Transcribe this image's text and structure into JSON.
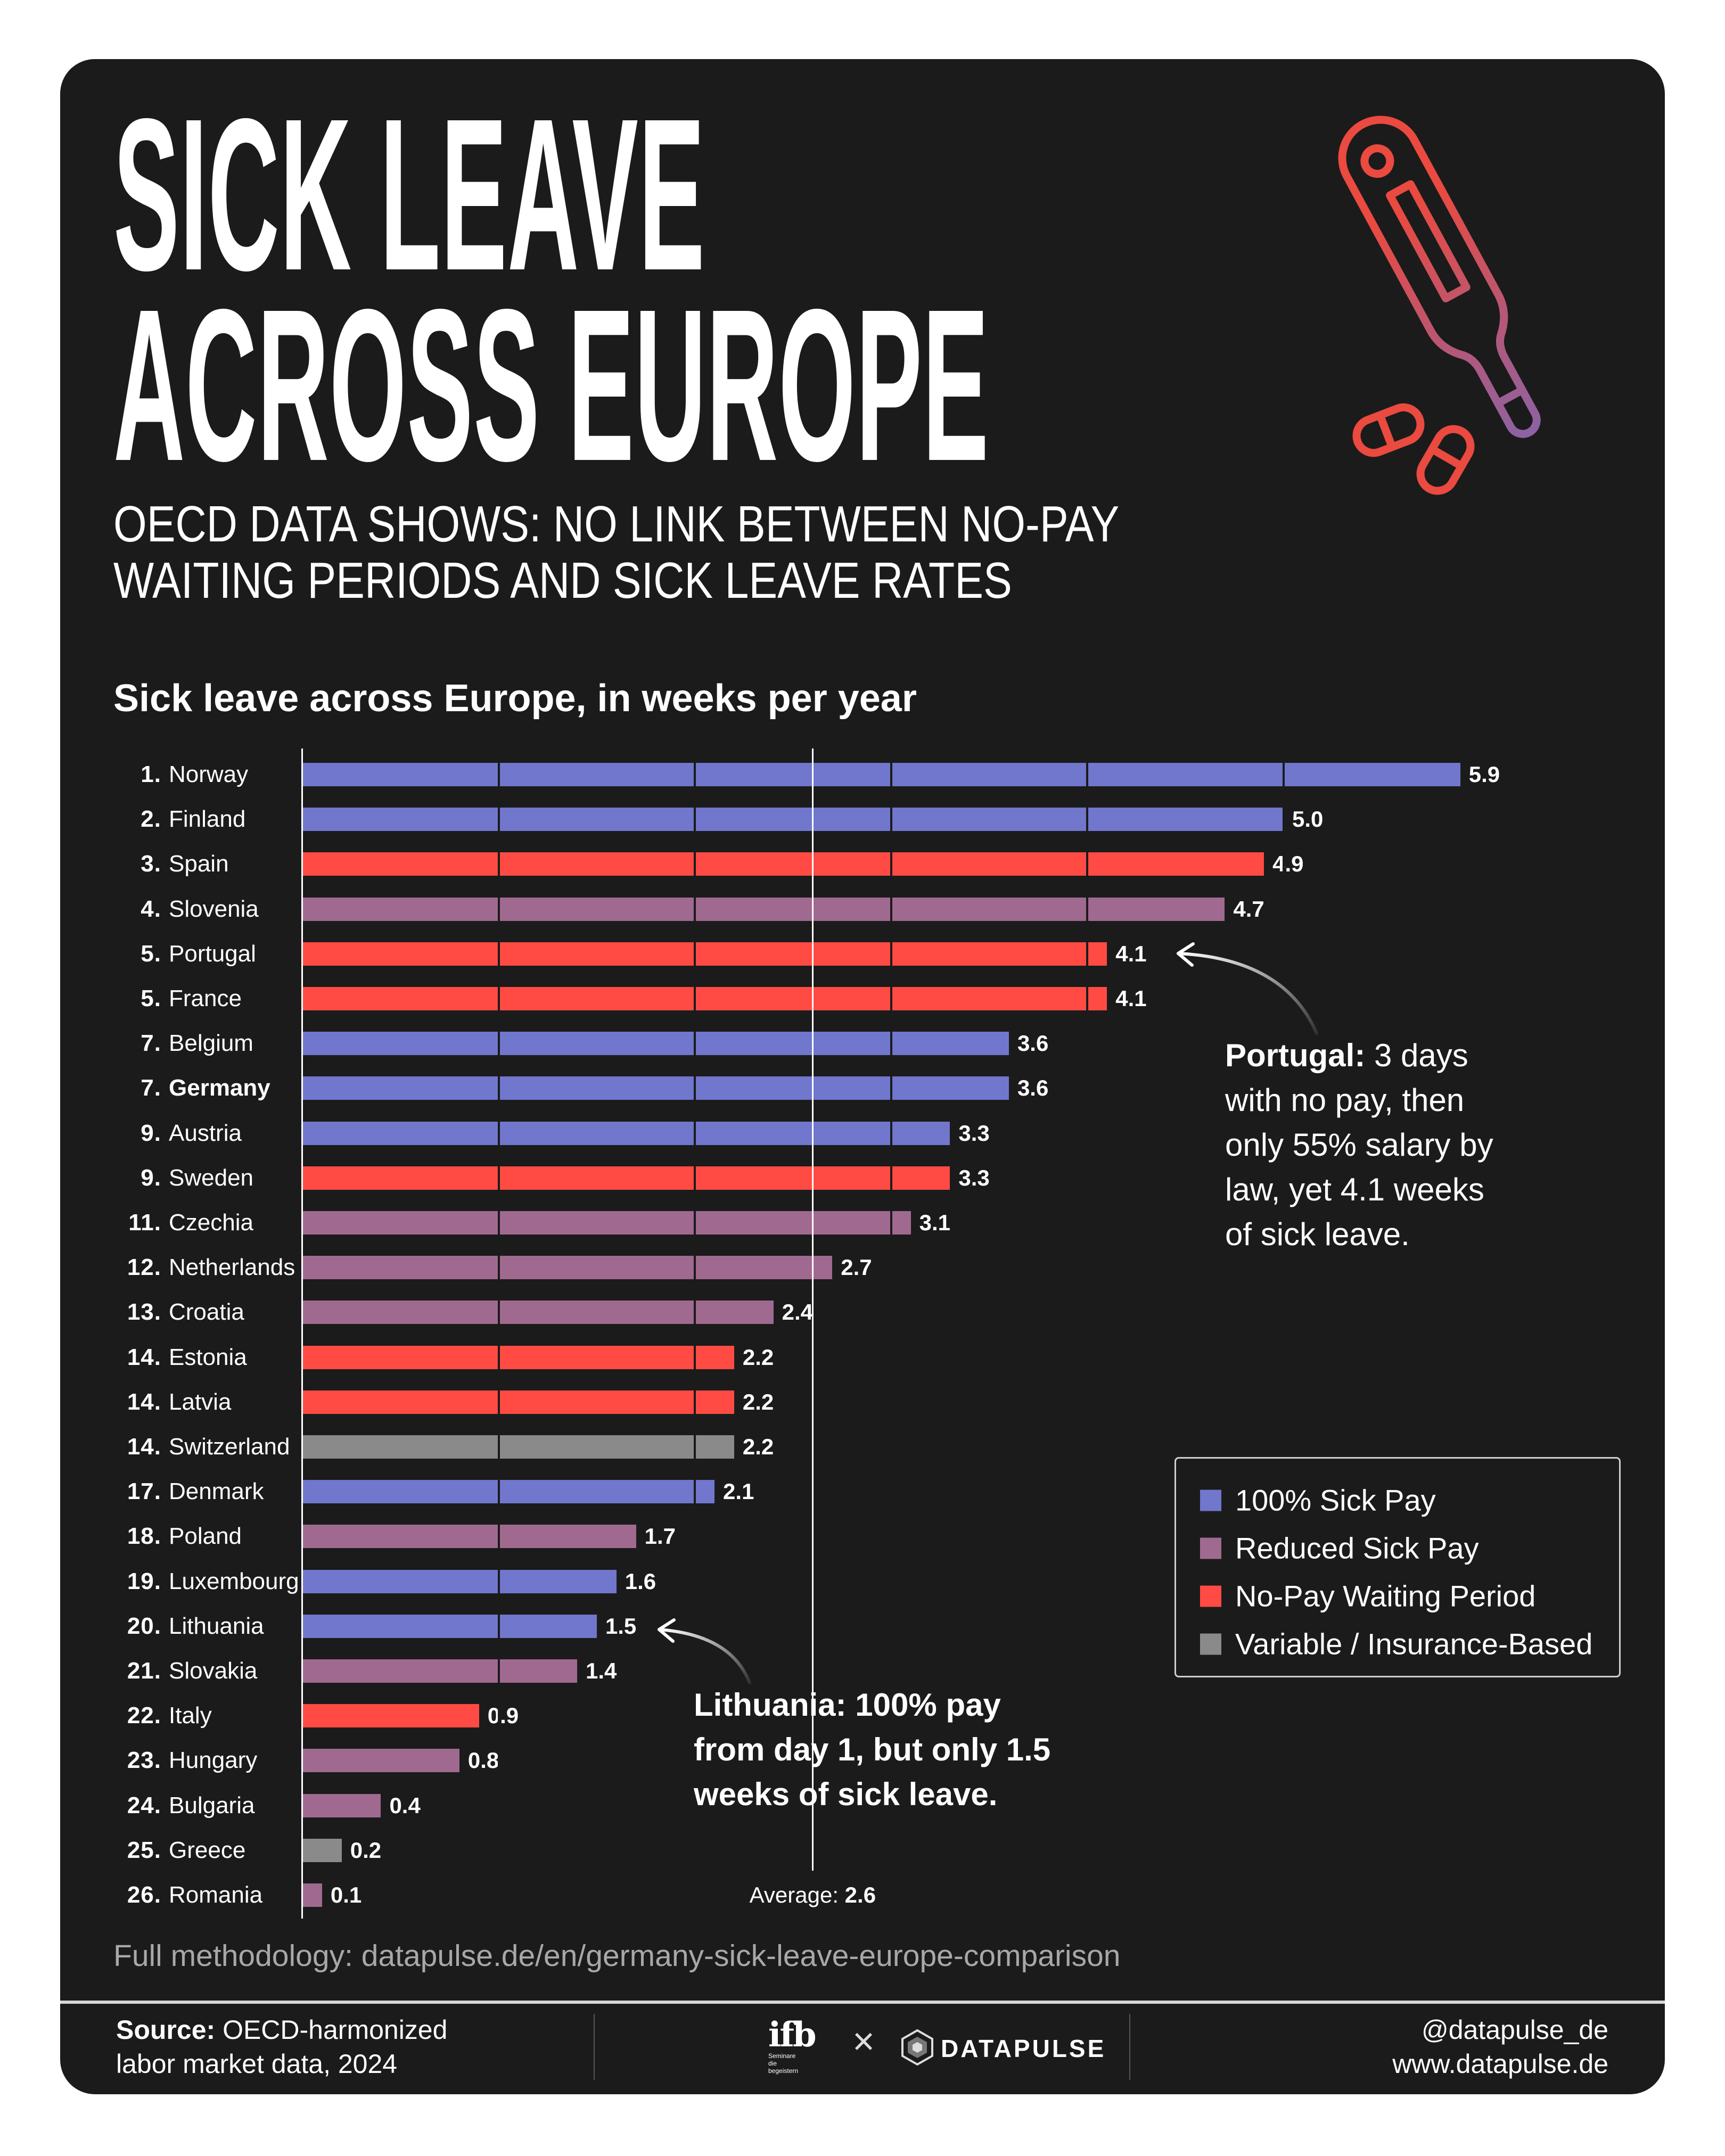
{
  "header": {
    "title_line1": "SICK LEAVE",
    "title_line2": "ACROSS EUROPE",
    "subtitle_line1": "OECD DATA SHOWS: NO LINK BETWEEN NO-PAY",
    "subtitle_line2": "WAITING PERIODS AND SICK LEAVE RATES",
    "icon": "thermometer-and-pills-icon"
  },
  "chart_data": {
    "type": "bar",
    "orientation": "horizontal",
    "title": "Sick leave across Europe, in weeks per year",
    "xlim": [
      0,
      6
    ],
    "grid": "vertical gridlines at each whole week (drawn as bar gaps)",
    "legend_placement": "bottom-right",
    "categories": [
      "Norway",
      "Finland",
      "Spain",
      "Slovenia",
      "Portugal",
      "France",
      "Belgium",
      "Germany",
      "Austria",
      "Sweden",
      "Czechia",
      "Netherlands",
      "Croatia",
      "Estonia",
      "Latvia",
      "Switzerland",
      "Denmark",
      "Poland",
      "Luxembourg",
      "Lithuania",
      "Slovakia",
      "Italy",
      "Hungary",
      "Bulgaria",
      "Greece",
      "Romania"
    ],
    "ranks": [
      "1.",
      "2.",
      "3.",
      "4.",
      "5.",
      "5.",
      "7.",
      "7.",
      "9.",
      "9.",
      "11.",
      "12.",
      "13.",
      "14.",
      "14.",
      "14.",
      "17.",
      "18.",
      "19.",
      "20.",
      "21.",
      "22.",
      "23.",
      "24.",
      "25.",
      "26."
    ],
    "values": [
      5.9,
      5.0,
      4.9,
      4.7,
      4.1,
      4.1,
      3.6,
      3.6,
      3.3,
      3.3,
      3.1,
      2.7,
      2.4,
      2.2,
      2.2,
      2.2,
      2.1,
      1.7,
      1.6,
      1.5,
      1.4,
      0.9,
      0.8,
      0.4,
      0.2,
      0.1
    ],
    "value_labels": [
      "5.9",
      "5.0",
      "4.9",
      "4.7",
      "4.1",
      "4.1",
      "3.6",
      "3.6",
      "3.3",
      "3.3",
      "3.1",
      "2.7",
      "2.4",
      "2.2",
      "2.2",
      "2.2",
      "2.1",
      "1.7",
      "1.6",
      "1.5",
      "1.4",
      "0.9",
      "0.8",
      "0.4",
      "0.2",
      "0.1"
    ],
    "groups": [
      "full",
      "full",
      "nopay",
      "reduced",
      "nopay",
      "nopay",
      "full",
      "full",
      "full",
      "nopay",
      "reduced",
      "reduced",
      "reduced",
      "nopay",
      "nopay",
      "variable",
      "full",
      "reduced",
      "full",
      "full",
      "reduced",
      "nopay",
      "reduced",
      "reduced",
      "variable",
      "reduced"
    ],
    "highlighted": "Germany",
    "average": {
      "label": "Average:",
      "value": 2.6,
      "value_label": "2.6"
    },
    "legend": [
      {
        "key": "full",
        "label": "100% Sick Pay",
        "color": "#7077CC"
      },
      {
        "key": "reduced",
        "label": "Reduced Sick Pay",
        "color": "#A06A90"
      },
      {
        "key": "nopay",
        "label": "No-Pay Waiting Period",
        "color": "#FF4B44"
      },
      {
        "key": "variable",
        "label": "Variable / Insurance-Based",
        "color": "#8A8A8A"
      }
    ],
    "annotations": [
      {
        "target": "Portugal",
        "bold": "Portugal:",
        "lines": [
          " 3 days",
          "with no pay, then",
          "only 55% salary by",
          "law, yet 4.1 weeks",
          "of sick leave."
        ]
      },
      {
        "target": "Lithuania",
        "lines": [
          "Lithuania: 100% pay",
          "from day 1, but only 1.5",
          "weeks of sick leave."
        ]
      }
    ]
  },
  "methodology": "Full methodology: datapulse.de/en/germany-sick-leave-europe-comparison",
  "footer": {
    "source_bold": "Source:",
    "source_line1": " OECD-harmonized",
    "source_line2": "labor market data, 2024",
    "logo_ifb": "ifb",
    "logo_ifb_sub": "Seminare die begeistern",
    "cross": "×",
    "logo_datapulse": "DATAPULSE",
    "handle": "@datapulse_de",
    "website": "www.datapulse.de"
  },
  "colors": {
    "background": "#1b1b1b",
    "text": "#ffffff",
    "icon_gradient": [
      "#EA4A3F",
      "#6A6BC8"
    ]
  }
}
